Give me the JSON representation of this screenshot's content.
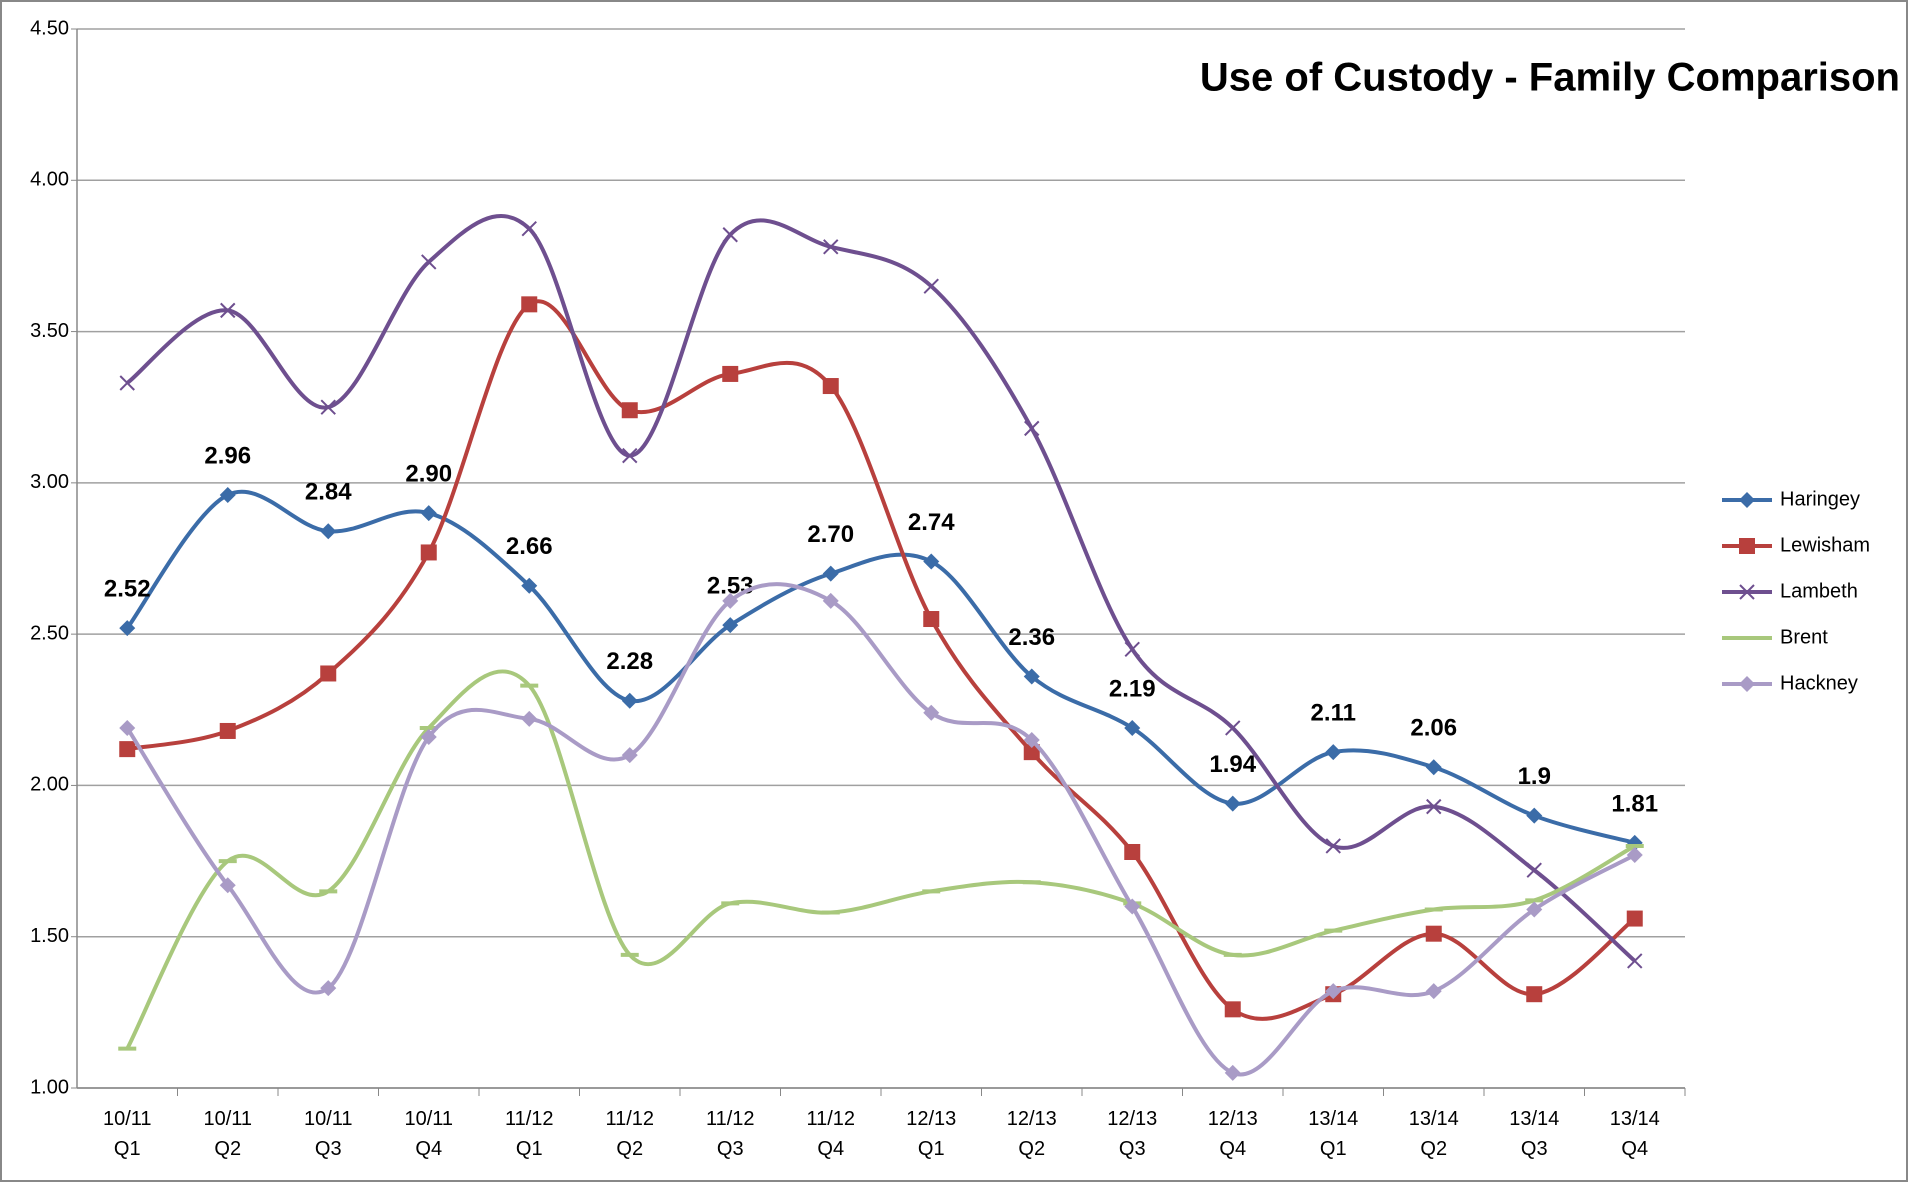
{
  "chart_data": {
    "type": "line",
    "title": "Use of Custody - Family Comparison",
    "categories": [
      "10/11 Q1",
      "10/11 Q2",
      "10/11 Q3",
      "10/11 Q4",
      "11/12 Q1",
      "11/12 Q2",
      "11/12 Q3",
      "11/12 Q4",
      "12/13 Q1",
      "12/13 Q2",
      "12/13 Q3",
      "12/13 Q4",
      "13/14 Q1",
      "13/14 Q2",
      "13/14 Q3",
      "13/14 Q4"
    ],
    "ylim": [
      1,
      4.5
    ],
    "yticks": [
      {
        "value": 1,
        "label": "1.00"
      },
      {
        "value": 1.5,
        "label": "1.50"
      },
      {
        "value": 2,
        "label": "2.00"
      },
      {
        "value": 2.5,
        "label": "2.50"
      },
      {
        "value": 3,
        "label": "3.00"
      },
      {
        "value": 3.5,
        "label": "3.50"
      },
      {
        "value": 4,
        "label": "4.00"
      },
      {
        "value": 4.5,
        "label": "4.50"
      }
    ],
    "grid": true,
    "legend": "right",
    "smooth": true,
    "series": [
      {
        "name": "Haringey",
        "color": "#3b6ca8",
        "marker": "diamond",
        "values": [
          2.52,
          2.96,
          2.84,
          2.9,
          2.66,
          2.28,
          2.53,
          2.7,
          2.74,
          2.36,
          2.19,
          1.94,
          2.11,
          2.06,
          1.9,
          1.81
        ],
        "value_labels": [
          "2.52",
          "2.96",
          "2.84",
          "2.90",
          "2.66",
          "2.28",
          "2.53",
          "2.70",
          "2.74",
          "2.36",
          "2.19",
          "1.94",
          "2.11",
          "2.06",
          "1.9",
          "1.81"
        ]
      },
      {
        "name": "Lewisham",
        "color": "#b8403d",
        "marker": "square",
        "values": [
          2.12,
          2.18,
          2.37,
          2.77,
          3.59,
          3.24,
          3.36,
          3.32,
          2.55,
          2.11,
          1.78,
          1.26,
          1.31,
          1.51,
          1.31,
          1.56
        ]
      },
      {
        "name": "Lambeth",
        "color": "#6e4f8f",
        "marker": "x",
        "values": [
          3.33,
          3.57,
          3.25,
          3.73,
          3.84,
          3.09,
          3.82,
          3.78,
          3.65,
          3.18,
          2.45,
          2.19,
          1.8,
          1.93,
          1.72,
          1.42
        ]
      },
      {
        "name": "Brent",
        "color": "#a8c87c",
        "marker": "dash",
        "values": [
          1.13,
          1.75,
          1.65,
          2.19,
          2.33,
          1.44,
          1.61,
          1.58,
          1.65,
          1.68,
          1.61,
          1.44,
          1.52,
          1.59,
          1.62,
          1.8
        ]
      },
      {
        "name": "Hackney",
        "color": "#a99bc6",
        "marker": "diamond",
        "values": [
          2.19,
          1.67,
          1.33,
          2.16,
          2.22,
          2.1,
          2.61,
          2.61,
          2.24,
          2.15,
          1.6,
          1.05,
          1.32,
          1.32,
          1.59,
          1.77
        ]
      }
    ]
  }
}
